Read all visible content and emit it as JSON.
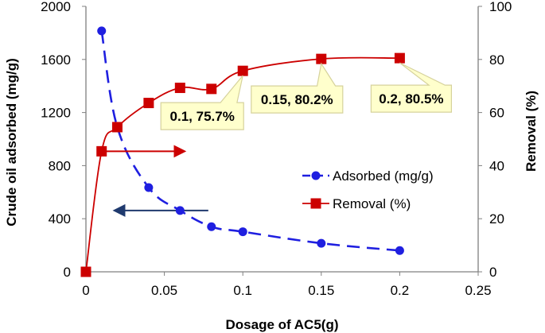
{
  "chart_data": {
    "type": "line",
    "title": "",
    "xlabel": "Dosage of AC5(g)",
    "ylabel_left": "Crude oil adsorbed (mg/g)",
    "ylabel_right": "Removal (%)",
    "xlim": [
      0,
      0.25
    ],
    "ylim_left": [
      0,
      2000
    ],
    "ylim_right": [
      0,
      100
    ],
    "x_ticks": [
      "0",
      "0.05",
      "0.1",
      "0.15",
      "0.2",
      "0.25"
    ],
    "y_left_ticks": [
      "0",
      "400",
      "800",
      "1200",
      "1600",
      "2000"
    ],
    "y_right_ticks": [
      "0",
      "20",
      "40",
      "60",
      "80",
      "100"
    ],
    "grid": false,
    "legend_position": "center-right",
    "series": [
      {
        "name": "Adsorbed (mg/g)",
        "axis": "left",
        "color": "#1f1fe0",
        "line_style": "dashed",
        "marker": "circle",
        "x": [
          0,
          0.01,
          0.02,
          0.04,
          0.06,
          0.08,
          0.1,
          0.15,
          0.2
        ],
        "y": [
          0,
          1815,
          1090,
          635,
          462,
          340,
          302,
          215,
          160
        ]
      },
      {
        "name": "Removal (%)",
        "axis": "right",
        "color": "#cc0000",
        "line_style": "solid",
        "marker": "square",
        "x": [
          0,
          0.01,
          0.02,
          0.04,
          0.06,
          0.08,
          0.1,
          0.15,
          0.2
        ],
        "y": [
          0,
          45.4,
          54.5,
          63.6,
          69.3,
          68.9,
          75.7,
          80.2,
          80.5
        ]
      }
    ],
    "annotations": [
      {
        "text": "0.1, 75.7%",
        "x": 0.1,
        "y": 75.7,
        "axis": "right"
      },
      {
        "text": "0.15, 80.2%",
        "x": 0.15,
        "y": 80.2,
        "axis": "right"
      },
      {
        "text": "0.2, 80.5%",
        "x": 0.2,
        "y": 80.5,
        "axis": "right"
      }
    ],
    "arrows": [
      {
        "series": "Removal (%)",
        "direction": "right",
        "axis": "right",
        "y": 45.4,
        "x_from": 0.01,
        "x_to": 0.062
      },
      {
        "series": "Adsorbed (mg/g)",
        "direction": "left",
        "axis": "left",
        "y": 462,
        "x_from": 0.078,
        "x_to": 0.019
      }
    ],
    "colors": {
      "adsorbed": "#1f1fe0",
      "removal": "#cc0000",
      "arrow_adsorbed": "#1f3a6e",
      "callout_fill": "#ffffcc",
      "callout_stroke": "#d6d29c"
    }
  }
}
